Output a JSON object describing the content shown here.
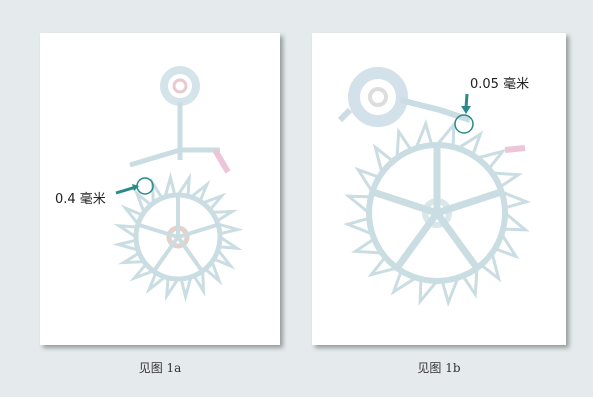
{
  "figures": [
    {
      "annotation": "0.4 毫米",
      "caption": "见图 1a"
    },
    {
      "annotation": "0.05 毫米",
      "caption": "见图 1b"
    }
  ]
}
